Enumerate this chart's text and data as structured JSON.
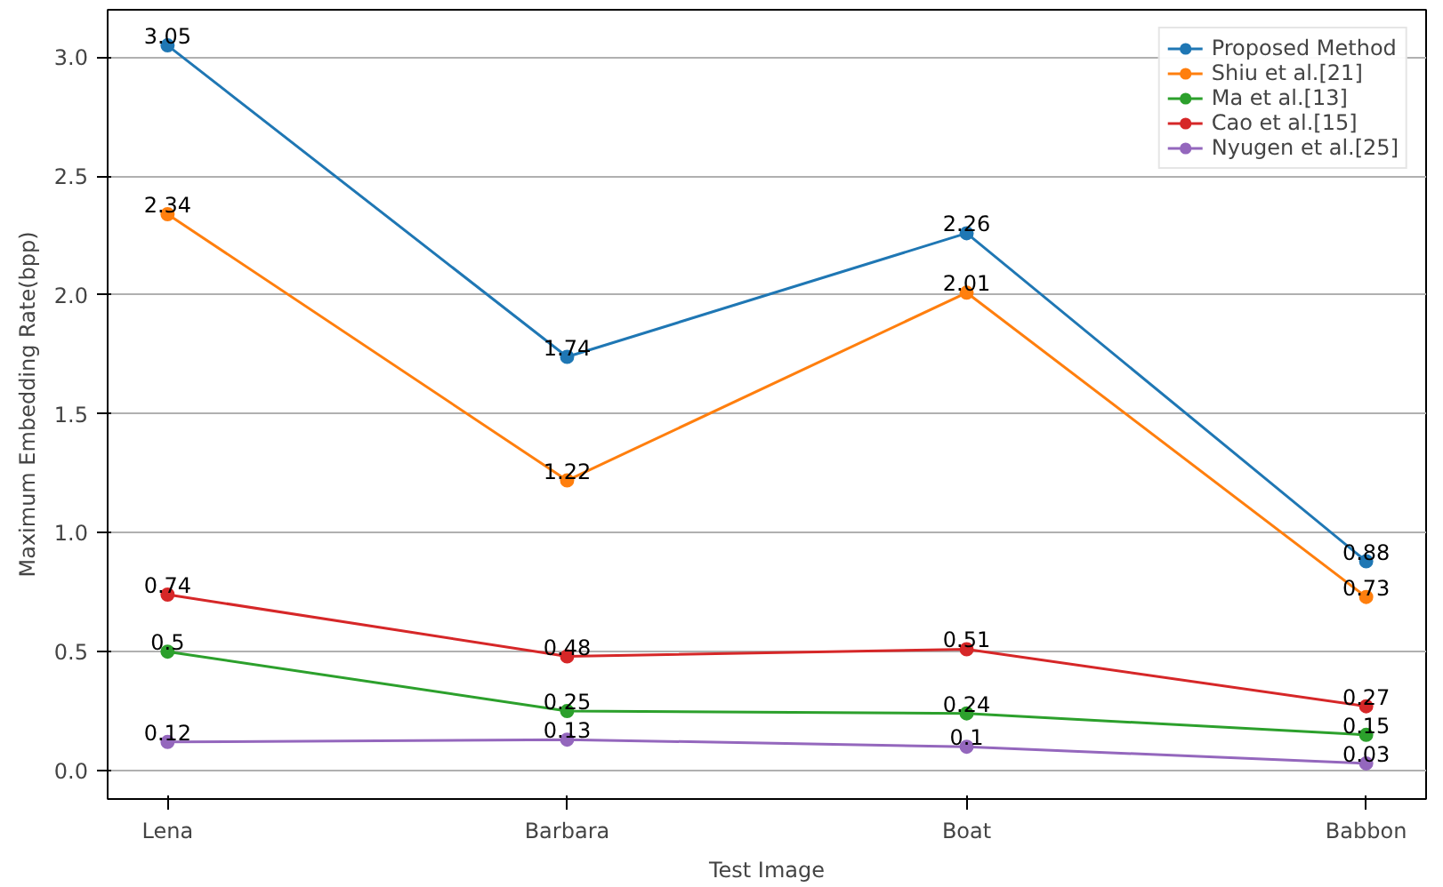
{
  "chart_data": {
    "type": "line",
    "xlabel": "Test Image",
    "ylabel": "Maximum Embedding Rate(bpp)",
    "categories": [
      "Lena",
      "Barbara",
      "Boat",
      "Babbon"
    ],
    "series": [
      {
        "name": "Proposed Method",
        "color": "#1f77b4",
        "values": [
          3.05,
          1.74,
          2.26,
          0.88
        ]
      },
      {
        "name": "Shiu et al.[21]",
        "color": "#ff7f0e",
        "values": [
          2.34,
          1.22,
          2.01,
          0.73
        ]
      },
      {
        "name": "Ma et al.[13]",
        "color": "#2ca02c",
        "values": [
          0.5,
          0.25,
          0.24,
          0.15
        ]
      },
      {
        "name": "Cao et al.[15]",
        "color": "#d62728",
        "values": [
          0.74,
          0.48,
          0.51,
          0.27
        ]
      },
      {
        "name": "Nyugen et al.[25]",
        "color": "#9467bd",
        "values": [
          0.12,
          0.13,
          0.1,
          0.03
        ]
      }
    ],
    "ylim": [
      -0.12,
      3.2
    ],
    "yticks": [
      {
        "value": 0,
        "label": "0.0"
      },
      {
        "value": 0.5,
        "label": "0.5"
      },
      {
        "value": 1,
        "label": "1.0"
      },
      {
        "value": 1.5,
        "label": "1.5"
      },
      {
        "value": 2,
        "label": "2.0"
      },
      {
        "value": 2.5,
        "label": "2.5"
      },
      {
        "value": 3,
        "label": "3.0"
      }
    ],
    "grid": "y",
    "legend": "top right",
    "marker": "circle",
    "line_style": "solid",
    "data_labels": true
  }
}
